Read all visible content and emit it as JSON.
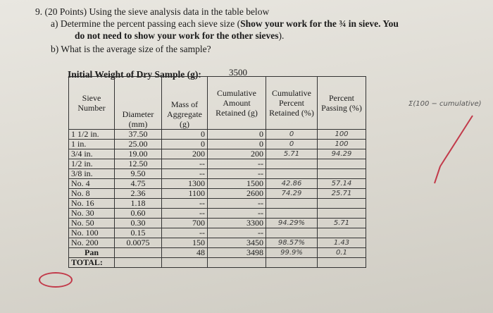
{
  "question": {
    "number_line": "9. (20 Points) Using the sieve analysis data in the table below",
    "part_a_1": "a)  Determine the percent passing each sieve size (",
    "part_a_bold_1": "Show your work for the ¾ in sieve. You",
    "part_a_bold_2": "do not need to show your work for the other sieves",
    "part_a_end": ").",
    "part_b": "b)  What is the average size of the sample?"
  },
  "initial_weight": {
    "label": "Initial Weight of Dry Sample (g):",
    "value": "3500"
  },
  "headers": {
    "sieve_number": "Sieve Number",
    "diameter": "Diameter (mm)",
    "mass": "Mass of Aggregate (g)",
    "cum_retained": "Cumulative Amount Retained (g)",
    "cum_pct": "Cumulative Percent Retained (%)",
    "pct_passing": "Percent Passing (%)"
  },
  "rows": [
    {
      "sieve": "1 1/2 in.",
      "dia": "37.50",
      "mass": "0",
      "cum": "0",
      "pct": "0",
      "pass": "100"
    },
    {
      "sieve": "1 in.",
      "dia": "25.00",
      "mass": "0",
      "cum": "0",
      "pct": "0",
      "pass": "100"
    },
    {
      "sieve": "3/4 in.",
      "dia": "19.00",
      "mass": "200",
      "cum": "200",
      "pct": "5.71",
      "pass": "94.29"
    },
    {
      "sieve": "1/2 in.",
      "dia": "12.50",
      "mass": "--",
      "cum": "--",
      "pct": "",
      "pass": ""
    },
    {
      "sieve": "3/8 in.",
      "dia": "9.50",
      "mass": "--",
      "cum": "--",
      "pct": "",
      "pass": ""
    },
    {
      "sieve": "No. 4",
      "dia": "4.75",
      "mass": "1300",
      "cum": "1500",
      "pct": "42.86",
      "pass": "57.14"
    },
    {
      "sieve": "No. 8",
      "dia": "2.36",
      "mass": "1100",
      "cum": "2600",
      "pct": "74.29",
      "pass": "25.71"
    },
    {
      "sieve": "No. 16",
      "dia": "1.18",
      "mass": "--",
      "cum": "--",
      "pct": "",
      "pass": ""
    },
    {
      "sieve": "No. 30",
      "dia": "0.60",
      "mass": "--",
      "cum": "--",
      "pct": "",
      "pass": ""
    },
    {
      "sieve": "No. 50",
      "dia": "0.30",
      "mass": "700",
      "cum": "3300",
      "pct": "94.29%",
      "pass": "5.71"
    },
    {
      "sieve": "No. 100",
      "dia": "0.15",
      "mass": "--",
      "cum": "--",
      "pct": "",
      "pass": ""
    },
    {
      "sieve": "No. 200",
      "dia": "0.0075",
      "mass": "150",
      "cum": "3450",
      "pct": "98.57%",
      "pass": "1.43"
    },
    {
      "sieve": "Pan",
      "dia": "",
      "mass": "48",
      "cum": "3498",
      "pct": "99.9%",
      "pass": "0.1"
    }
  ],
  "total_label": "TOTAL:",
  "margin_note": "Σ(100 − cumulative)",
  "colors": {
    "paper": "#e4e1da",
    "ink": "#1b1b1b",
    "red_pen": "#c23a4a"
  }
}
